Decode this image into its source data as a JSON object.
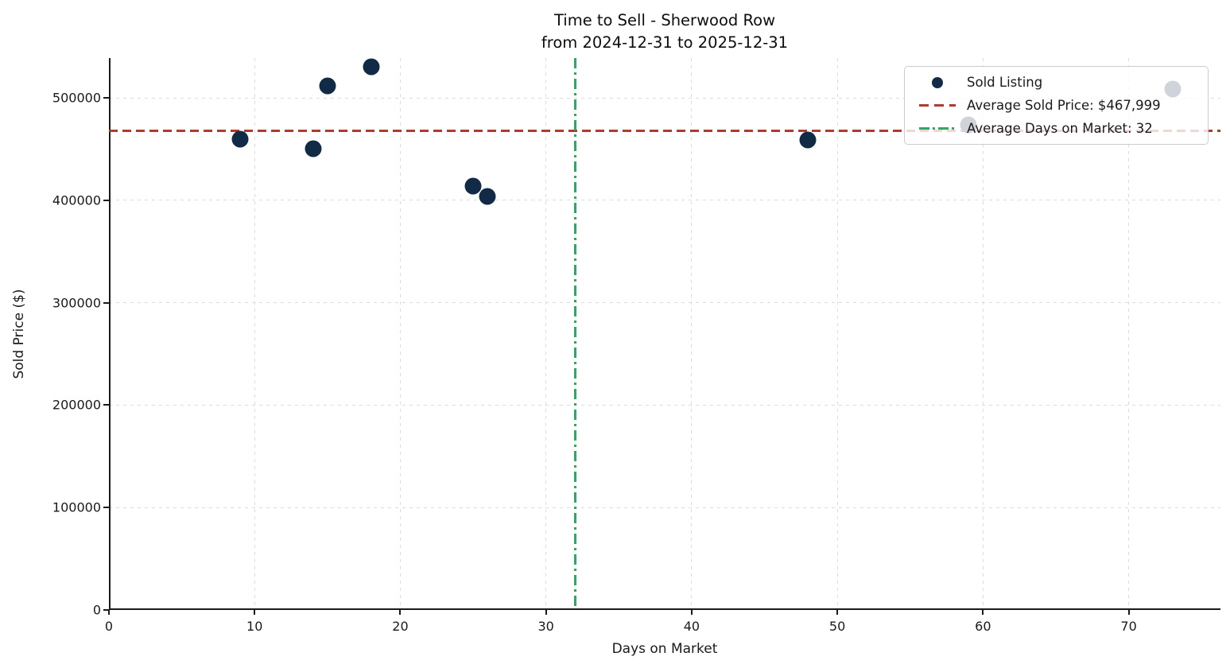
{
  "title": {
    "line1": "Time to Sell - Sherwood Row",
    "line2": "from 2024-12-31 to 2025-12-31"
  },
  "axes": {
    "xlabel": "Days on Market",
    "ylabel": "Sold Price ($)",
    "x_ticks": [
      0,
      10,
      20,
      30,
      40,
      50,
      60,
      70
    ],
    "y_ticks": [
      0,
      100000,
      200000,
      300000,
      400000,
      500000
    ]
  },
  "legend": {
    "items": [
      {
        "label": "Sold Listing",
        "marker": "dot"
      },
      {
        "label": "Average Sold Price: $467,999",
        "marker": "dashed-line"
      },
      {
        "label": "Average Days on Market: 32",
        "marker": "dashdot-line"
      }
    ]
  },
  "colors": {
    "point": "#112a46",
    "avg_price_line": "#b03a2e",
    "avg_days_line": "#2fa95f",
    "grid": "#dcdcdc",
    "text": "#1a1a1a"
  },
  "chart_data": {
    "type": "scatter",
    "title": "Time to Sell - Sherwood Row from 2024-12-31 to 2025-12-31",
    "xlabel": "Days on Market",
    "ylabel": "Sold Price ($)",
    "xlim": [
      0,
      76.3
    ],
    "ylim": [
      0,
      538900
    ],
    "grid": true,
    "legend_position": "upper right",
    "series": [
      {
        "name": "Sold Listing",
        "points": [
          {
            "x": 9,
            "y": 460000
          },
          {
            "x": 14,
            "y": 450000
          },
          {
            "x": 15,
            "y": 512000
          },
          {
            "x": 18,
            "y": 530000
          },
          {
            "x": 25,
            "y": 414000
          },
          {
            "x": 26,
            "y": 404000
          },
          {
            "x": 48,
            "y": 459000
          },
          {
            "x": 59,
            "y": 474000
          },
          {
            "x": 73,
            "y": 509000
          }
        ]
      }
    ],
    "reference_lines": [
      {
        "name": "Average Sold Price",
        "orientation": "horizontal",
        "value": 467999,
        "style": "dashed"
      },
      {
        "name": "Average Days on Market",
        "orientation": "vertical",
        "value": 32,
        "style": "dashdot"
      }
    ]
  }
}
